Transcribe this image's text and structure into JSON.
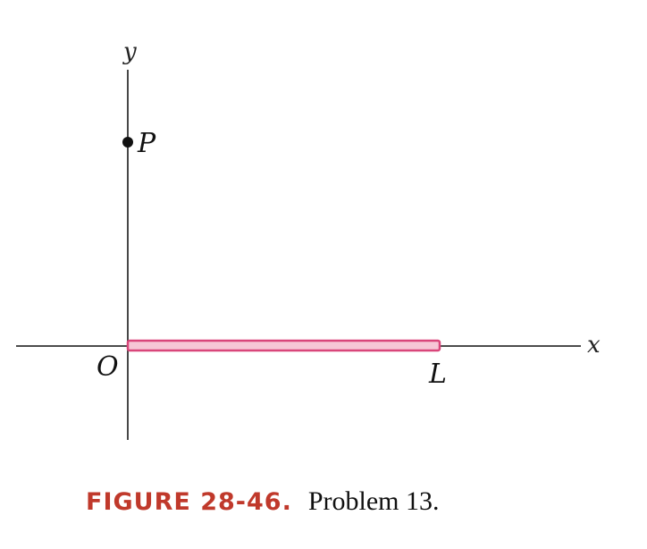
{
  "axes": {
    "y_label": "y",
    "x_label": "x"
  },
  "points": {
    "p_label": "P",
    "origin_label": "O",
    "l_label": "L"
  },
  "rod": {
    "color": "#d9467a",
    "fill": "#f6c7d6"
  },
  "caption": {
    "tag": "FIGURE 28-46.",
    "text": "Problem 13."
  }
}
